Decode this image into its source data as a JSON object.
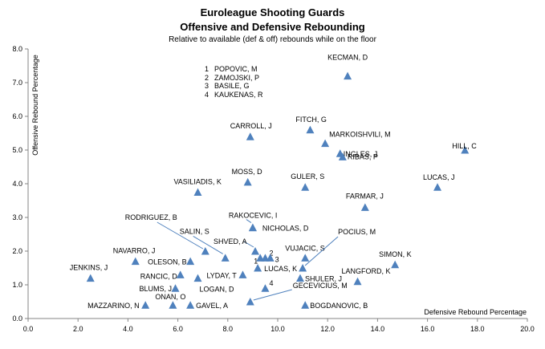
{
  "chart_data": {
    "type": "scatter",
    "title": "Euroleague Shooting Guards",
    "subtitle": "Offensive and Defensive Rebounding",
    "note": "Relative to  available (def & off) rebounds while on the floor",
    "xlabel": "Defensive Rebound Percentage",
    "ylabel": "Offensive Rebound Percentage",
    "xlim": [
      0,
      20
    ],
    "ylim": [
      0,
      8
    ],
    "xticks": [
      "0.0",
      "2.0",
      "4.0",
      "6.0",
      "8.0",
      "10.0",
      "12.0",
      "14.0",
      "16.0",
      "18.0",
      "20.0"
    ],
    "yticks": [
      "0.0",
      "1.0",
      "2.0",
      "3.0",
      "4.0",
      "5.0",
      "6.0",
      "7.0",
      "8.0"
    ],
    "grid": false,
    "marker_color": "#4f81bd",
    "points": [
      {
        "label": "KECMAN, D",
        "x": 12.8,
        "y": 7.2
      },
      {
        "label": "FITCH, G",
        "x": 11.3,
        "y": 5.6
      },
      {
        "label": "CARROLL, J",
        "x": 8.9,
        "y": 5.4
      },
      {
        "label": "MARKOISHVILI, M",
        "x": 11.9,
        "y": 5.2
      },
      {
        "label": "INGLES, J",
        "x": 12.5,
        "y": 4.9
      },
      {
        "label": "RIBAS, P",
        "x": 12.6,
        "y": 4.8
      },
      {
        "label": "HILL, C",
        "x": 17.5,
        "y": 5.0
      },
      {
        "label": "MOSS, D",
        "x": 8.8,
        "y": 4.05
      },
      {
        "label": "VASILIADIS, K",
        "x": 6.8,
        "y": 3.75
      },
      {
        "label": "GULER, S",
        "x": 11.1,
        "y": 3.9
      },
      {
        "label": "LUCAS, J",
        "x": 16.4,
        "y": 3.9
      },
      {
        "label": "FARMAR, J",
        "x": 13.5,
        "y": 3.3
      },
      {
        "label": "RAKOCEVIC, I",
        "x": 9.0,
        "y": 2.7
      },
      {
        "label": "NICHOLAS, D",
        "x": 9.0,
        "y": 2.7
      },
      {
        "label": "SHVED, A",
        "x": 9.1,
        "y": 2.0
      },
      {
        "label": "SALIN, S",
        "x": 7.9,
        "y": 1.8
      },
      {
        "label": "RODRIGUEZ, B",
        "x": 7.1,
        "y": 2.0
      },
      {
        "label": "NAVARRO, J",
        "x": 4.3,
        "y": 1.7
      },
      {
        "label": "OLESON, B",
        "x": 6.5,
        "y": 1.7
      },
      {
        "label": "JENKINS, J",
        "x": 2.5,
        "y": 1.2
      },
      {
        "label": "RANCIC, D",
        "x": 6.1,
        "y": 1.3
      },
      {
        "label": "LYDAY, T",
        "x": 8.6,
        "y": 1.3
      },
      {
        "label": "LUCAS, K",
        "x": 9.2,
        "y": 1.5
      },
      {
        "label": "VUJACIC, S",
        "x": 11.1,
        "y": 1.8
      },
      {
        "label": "POCIUS, M",
        "x": 11.0,
        "y": 1.5
      },
      {
        "label": "SIMON, K",
        "x": 14.7,
        "y": 1.6
      },
      {
        "label": "SHULER, J",
        "x": 10.9,
        "y": 1.2
      },
      {
        "label": "LANGFORD, K",
        "x": 13.2,
        "y": 1.1
      },
      {
        "label": "BLUMS, J",
        "x": 5.9,
        "y": 0.9
      },
      {
        "label": "LOGAN, D",
        "x": 6.8,
        "y": 1.2
      },
      {
        "label": "ONAN, O",
        "x": 5.8,
        "y": 0.4
      },
      {
        "label": "MAZZARINO, N",
        "x": 4.7,
        "y": 0.4
      },
      {
        "label": "GAVEL, A",
        "x": 6.5,
        "y": 0.4
      },
      {
        "label": "GECEVICIUS, M",
        "x": 8.9,
        "y": 0.5
      },
      {
        "label": "BOGDANOVIC, B",
        "x": 11.1,
        "y": 0.4
      },
      {
        "label": "1",
        "x": 9.3,
        "y": 1.8
      },
      {
        "label": "2",
        "x": 9.5,
        "y": 1.8
      },
      {
        "label": "3",
        "x": 9.7,
        "y": 1.8
      },
      {
        "label": "4",
        "x": 9.5,
        "y": 0.9
      }
    ],
    "key": [
      {
        "num": "1",
        "name": "POPOVIC, M"
      },
      {
        "num": "2",
        "name": "ZAMOJSKI, P"
      },
      {
        "num": "3",
        "name": "BASILE, G"
      },
      {
        "num": "4",
        "name": "KAUKENAS, R"
      }
    ]
  }
}
